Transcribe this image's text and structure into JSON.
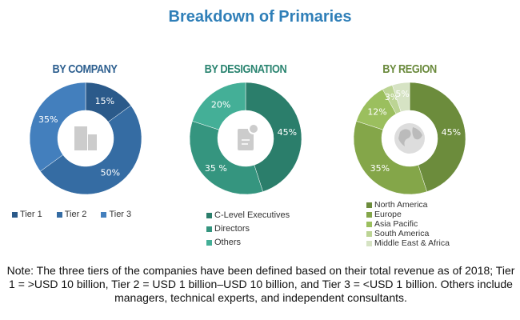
{
  "title": "Breakdown of Primaries",
  "chart_data": [
    {
      "type": "pie",
      "title": "BY COMPANY",
      "title_color": "#2d5f8f",
      "categories": [
        "Tier 1",
        "Tier 2",
        "Tier 3"
      ],
      "values": [
        15,
        50,
        35
      ],
      "labels": [
        "15%",
        "50%",
        "35%"
      ],
      "colors": [
        "#2b5a8a",
        "#356ca3",
        "#437fbd"
      ],
      "center_icon": "building-icon",
      "legend_placement": "bottom"
    },
    {
      "type": "pie",
      "title": "BY DESIGNATION",
      "title_color": "#2a8470",
      "categories": [
        "C-Level Executives",
        "Directors",
        "Others"
      ],
      "values": [
        45,
        35,
        20
      ],
      "labels": [
        "45%",
        "35 %",
        "20%"
      ],
      "colors": [
        "#2b7e6b",
        "#35957f",
        "#44af97"
      ],
      "center_icon": "document-icon",
      "legend_placement": "bottom"
    },
    {
      "type": "pie",
      "title": "BY REGION",
      "title_color": "#6a8a3c",
      "categories": [
        "North America",
        "Europe",
        "Asia Pacific",
        "South America",
        "Middle East & Africa"
      ],
      "values": [
        45,
        35,
        12,
        3,
        5
      ],
      "labels": [
        "45%",
        "35%",
        "12%",
        "3%",
        "5%"
      ],
      "colors": [
        "#6c8c3c",
        "#84a649",
        "#9bbf5e",
        "#bcd494",
        "#d6e3c4"
      ],
      "center_icon": "globe-icon",
      "legend_placement": "bottom"
    }
  ],
  "note": "Note: The three tiers of the companies have been defined based on their total revenue as of 2018; Tier 1 = >USD 10 billion, Tier 2 = USD 1 billion–USD 10 billion, and Tier 3 = <USD 1 billion. Others include managers, technical experts, and independent consultants."
}
